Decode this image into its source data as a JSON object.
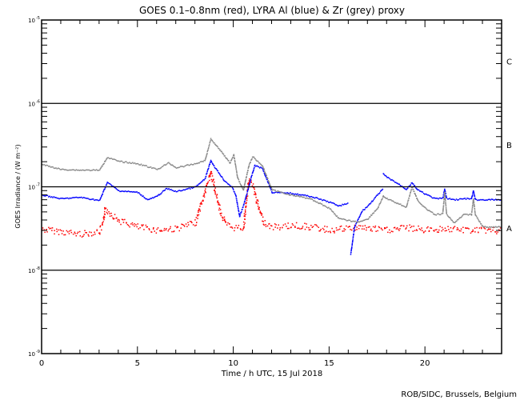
{
  "chart_data": {
    "type": "scatter",
    "title": "GOES 0.1–0.8nm (red), LYRA Al (blue) & Zr (grey) proxy",
    "xlabel": "Time / h UTC, 15 Jul 2018",
    "ylabel": "GOES Irradiance / (W m⁻²)",
    "xlim": [
      0,
      24
    ],
    "ylim": [
      1e-09,
      1e-05
    ],
    "yscale": "log",
    "x_ticks": [
      0,
      5,
      10,
      15,
      20
    ],
    "x_tick_labels": [
      "0",
      "5",
      "10",
      "15",
      "20"
    ],
    "y_ticks": [
      1e-09,
      1e-08,
      1e-07,
      1e-06,
      1e-05
    ],
    "y_tick_labels": [
      {
        "base": "10",
        "exp": "-9"
      },
      {
        "base": "10",
        "exp": "-8"
      },
      {
        "base": "10",
        "exp": "-7"
      },
      {
        "base": "10",
        "exp": "-6"
      },
      {
        "base": "10",
        "exp": "-5"
      }
    ],
    "class_levels": [
      {
        "label": "A",
        "value": 3.2e-08
      },
      {
        "label": "B",
        "value": 3.2e-07
      },
      {
        "label": "C",
        "value": 3.2e-06
      }
    ],
    "reference_lines": [
      1e-08,
      1e-07,
      1e-06
    ],
    "credit": "ROB/SIDC, Brussels, Belgium",
    "series": [
      {
        "name": "GOES 0.1-0.8nm",
        "color": "#ff0000",
        "jitter": true,
        "segments": [
          [
            [
              0,
              3.13e-08
            ],
            [
              1,
              2.94e-08
            ],
            [
              2,
              2.75e-08
            ],
            [
              3,
              2.94e-08
            ],
            [
              3.2,
              3.74e-08
            ],
            [
              3.3,
              5.6e-08
            ],
            [
              3.5,
              5e-08
            ],
            [
              4,
              4e-08
            ],
            [
              5,
              3.35e-08
            ],
            [
              6,
              3.07e-08
            ],
            [
              7,
              3.2e-08
            ],
            [
              8,
              3.74e-08
            ],
            [
              8.5,
              8.7e-08
            ],
            [
              8.8,
              1.57e-07
            ],
            [
              9,
              9.7e-08
            ],
            [
              9.3,
              5e-08
            ],
            [
              9.6,
              3.58e-08
            ],
            [
              10,
              3.28e-08
            ],
            [
              10.5,
              3.28e-08
            ],
            [
              10.8,
              1.29e-07
            ],
            [
              11,
              1.03e-07
            ],
            [
              11.3,
              5.6e-08
            ],
            [
              11.6,
              3.74e-08
            ],
            [
              12,
              3.35e-08
            ],
            [
              12.5,
              3.35e-08
            ],
            [
              13,
              3.5e-08
            ],
            [
              14,
              3.35e-08
            ],
            [
              15,
              3.07e-08
            ],
            [
              16,
              3.2e-08
            ],
            [
              16.5,
              3.35e-08
            ],
            [
              17,
              3.2e-08
            ],
            [
              18,
              3.07e-08
            ],
            [
              19,
              3.28e-08
            ],
            [
              20,
              3.07e-08
            ],
            [
              21,
              3.2e-08
            ],
            [
              22,
              3.07e-08
            ],
            [
              23,
              3.07e-08
            ],
            [
              24,
              3e-08
            ]
          ]
        ]
      },
      {
        "name": "LYRA Al proxy",
        "color": "#0000ff",
        "jitter": false,
        "segments": [
          [
            [
              0,
              8.1e-08
            ],
            [
              1,
              7.3e-08
            ],
            [
              2,
              7.6e-08
            ],
            [
              3,
              6.95e-08
            ],
            [
              3.4,
              1.15e-07
            ],
            [
              4,
              9.1e-08
            ],
            [
              5,
              8.7e-08
            ],
            [
              5.5,
              7.1e-08
            ],
            [
              6,
              7.8e-08
            ],
            [
              6.5,
              9.7e-08
            ],
            [
              7,
              8.9e-08
            ],
            [
              8,
              1.01e-07
            ],
            [
              8.5,
              1.26e-07
            ],
            [
              8.8,
              2.1e-07
            ],
            [
              9,
              1.76e-07
            ],
            [
              9.5,
              1.21e-07
            ],
            [
              9.9,
              1.01e-07
            ],
            [
              10.1,
              8.1e-08
            ],
            [
              10.3,
              4.5e-08
            ],
            [
              10.5,
              6e-08
            ],
            [
              10.7,
              8.7e-08
            ],
            [
              10.9,
              1.29e-07
            ],
            [
              11.1,
              1.84e-07
            ],
            [
              11.5,
              1.68e-07
            ],
            [
              12,
              8.7e-08
            ],
            [
              13,
              8.5e-08
            ],
            [
              14,
              7.8e-08
            ],
            [
              15,
              6.65e-08
            ],
            [
              15.5,
              6e-08
            ],
            [
              16,
              6.5e-08
            ]
          ],
          [
            [
              16.1,
              1.58e-08
            ],
            [
              16.3,
              3.35e-08
            ],
            [
              16.7,
              5.2e-08
            ],
            [
              17,
              6e-08
            ],
            [
              17.5,
              8.1e-08
            ],
            [
              17.8,
              9.7e-08
            ]
          ],
          [
            [
              17.8,
              1.44e-07
            ],
            [
              18,
              1.32e-07
            ],
            [
              18.5,
              1.13e-07
            ],
            [
              19,
              9.5e-08
            ],
            [
              19.3,
              1.13e-07
            ],
            [
              19.6,
              9.3e-08
            ],
            [
              20,
              8.3e-08
            ],
            [
              20.5,
              7.3e-08
            ],
            [
              20.9,
              7.4e-08
            ],
            [
              21,
              9.5e-08
            ],
            [
              21.1,
              7.4e-08
            ],
            [
              21.5,
              7.1e-08
            ],
            [
              22,
              7.3e-08
            ],
            [
              22.4,
              7.3e-08
            ],
            [
              22.5,
              9.1e-08
            ],
            [
              22.6,
              7.1e-08
            ],
            [
              23,
              7.1e-08
            ],
            [
              24,
              7.1e-08
            ]
          ]
        ]
      },
      {
        "name": "LYRA Zr proxy",
        "color": "#888888",
        "jitter": false,
        "segments": [
          [
            [
              0,
              1.88e-07
            ],
            [
              1,
              1.64e-07
            ],
            [
              2,
              1.61e-07
            ],
            [
              3,
              1.61e-07
            ],
            [
              3.4,
              2.29e-07
            ],
            [
              4,
              2.05e-07
            ],
            [
              5,
              1.92e-07
            ],
            [
              6,
              1.64e-07
            ],
            [
              6.6,
              1.96e-07
            ],
            [
              7,
              1.72e-07
            ],
            [
              8,
              1.92e-07
            ],
            [
              8.5,
              2.1e-07
            ],
            [
              8.8,
              3.8e-07
            ],
            [
              9.3,
              2.79e-07
            ],
            [
              9.8,
              1.96e-07
            ],
            [
              10,
              2.45e-07
            ],
            [
              10.2,
              1.29e-07
            ],
            [
              10.5,
              9.3e-08
            ],
            [
              10.8,
              1.88e-07
            ],
            [
              11,
              2.34e-07
            ],
            [
              11.5,
              1.8e-07
            ],
            [
              12,
              9.3e-08
            ],
            [
              13,
              8.1e-08
            ],
            [
              14,
              7.3e-08
            ],
            [
              15,
              5.6e-08
            ],
            [
              15.5,
              4.2e-08
            ],
            [
              16,
              4e-08
            ],
            [
              16.5,
              3.83e-08
            ],
            [
              17,
              4.2e-08
            ],
            [
              17.5,
              5.6e-08
            ],
            [
              17.8,
              7.8e-08
            ],
            [
              18,
              7.3e-08
            ],
            [
              18.5,
              6.5e-08
            ],
            [
              19,
              5.8e-08
            ],
            [
              19.3,
              1.01e-07
            ],
            [
              19.6,
              6.95e-08
            ],
            [
              20,
              5.6e-08
            ],
            [
              20.5,
              4.7e-08
            ],
            [
              20.9,
              4.8e-08
            ],
            [
              21,
              8.7e-08
            ],
            [
              21.1,
              4.8e-08
            ],
            [
              21.5,
              3.74e-08
            ],
            [
              22,
              4.7e-08
            ],
            [
              22.4,
              4.7e-08
            ],
            [
              22.5,
              7.3e-08
            ],
            [
              22.6,
              4.7e-08
            ],
            [
              23,
              3.35e-08
            ],
            [
              24,
              3.35e-08
            ]
          ]
        ]
      }
    ]
  }
}
